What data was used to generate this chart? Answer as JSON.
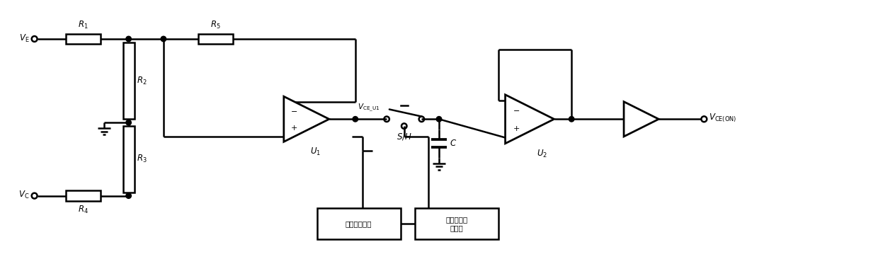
{
  "bg_color": "#ffffff",
  "line_color": "#000000",
  "line_width": 1.8,
  "fig_width": 12.4,
  "fig_height": 3.73,
  "labels": {
    "VE": "$V_{\\rm E}$",
    "VC": "$V_{\\rm C}$",
    "R1": "$R_1$",
    "R2": "$R_2$",
    "R3": "$R_3$",
    "R4": "$R_4$",
    "R5": "$R_5$",
    "U1": "$U_1$",
    "U2": "$U_2$",
    "C": "$C$",
    "SH": "$S/H$",
    "VCE_U1": "$V_{\\rm CE\\_U1}$",
    "VCE_ON": "$V_{\\rm CE(ON)}$",
    "box1": "下降沿检测器",
    "box2": "单稳态多谐\n振荡器"
  }
}
